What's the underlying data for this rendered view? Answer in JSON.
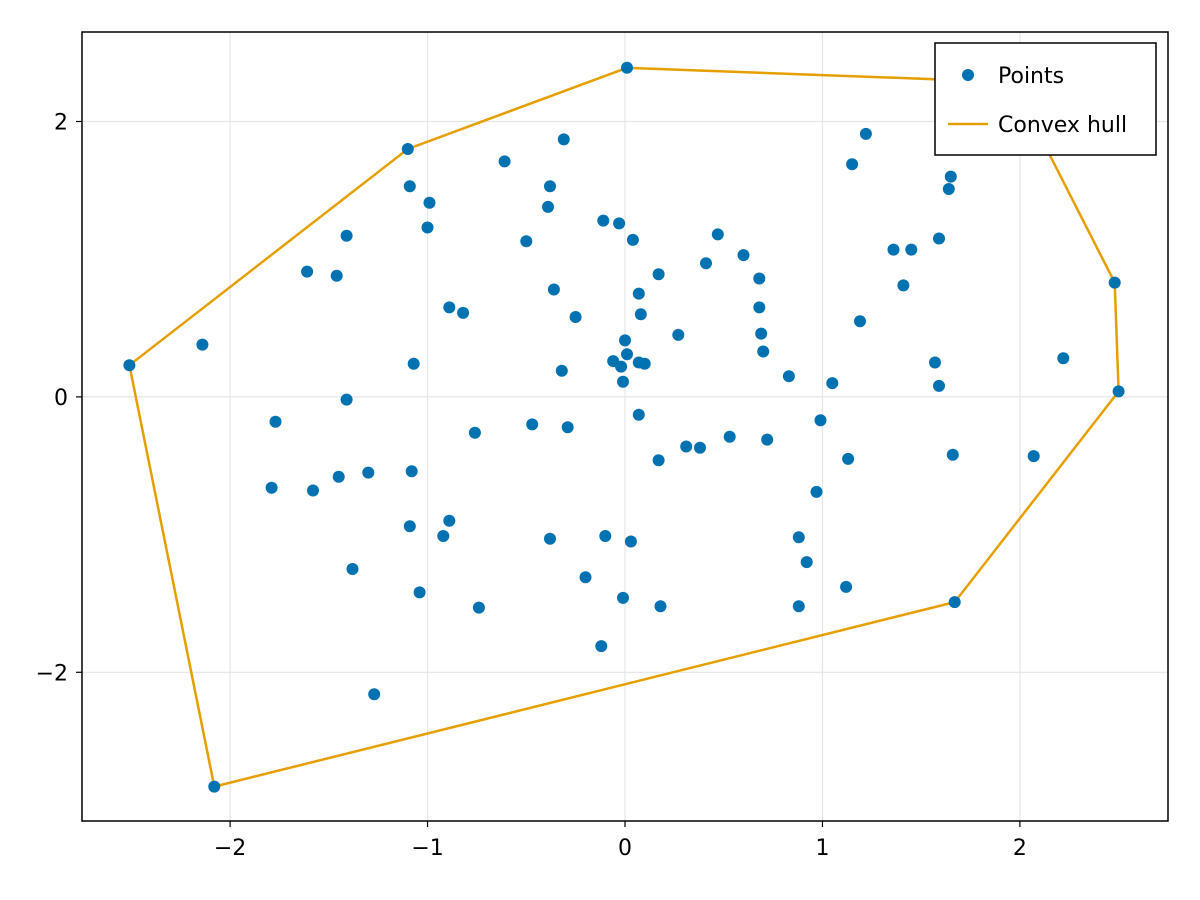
{
  "chart_data": {
    "type": "scatter",
    "title": "",
    "xlabel": "",
    "ylabel": "",
    "xlim": [
      -2.75,
      2.75
    ],
    "ylim": [
      -3.08,
      2.65
    ],
    "xticks": [
      -2,
      -1,
      0,
      1,
      2
    ],
    "yticks": [
      -2,
      0,
      2
    ],
    "xtick_labels": [
      "−2",
      "−1",
      "0",
      "1",
      "2"
    ],
    "ytick_labels": [
      "−2",
      "0",
      "2"
    ],
    "grid": true,
    "legend": {
      "position": "top-right",
      "entries": [
        {
          "label": "Points",
          "kind": "marker",
          "color": "#0072b2"
        },
        {
          "label": "Convex hull",
          "kind": "line",
          "color": "#e69f00"
        }
      ]
    },
    "series": [
      {
        "name": "Points",
        "type": "scatter",
        "color": "#0072b2",
        "points": [
          [
            0.01,
            2.39
          ],
          [
            -0.31,
            1.87
          ],
          [
            1.22,
            1.91
          ],
          [
            -1.1,
            1.8
          ],
          [
            -0.61,
            1.71
          ],
          [
            1.15,
            1.69
          ],
          [
            1.65,
            1.6
          ],
          [
            1.64,
            1.51
          ],
          [
            -1.09,
            1.53
          ],
          [
            -0.38,
            1.53
          ],
          [
            -0.99,
            1.41
          ],
          [
            -0.39,
            1.38
          ],
          [
            -0.11,
            1.28
          ],
          [
            -0.03,
            1.26
          ],
          [
            -1.0,
            1.23
          ],
          [
            0.47,
            1.18
          ],
          [
            -1.41,
            1.17
          ],
          [
            0.04,
            1.14
          ],
          [
            1.59,
            1.15
          ],
          [
            -0.5,
            1.13
          ],
          [
            1.36,
            1.07
          ],
          [
            1.45,
            1.07
          ],
          [
            0.6,
            1.03
          ],
          [
            0.41,
            0.97
          ],
          [
            -1.61,
            0.91
          ],
          [
            -1.46,
            0.88
          ],
          [
            0.17,
            0.89
          ],
          [
            0.68,
            0.86
          ],
          [
            2.48,
            0.83
          ],
          [
            1.41,
            0.81
          ],
          [
            -0.36,
            0.78
          ],
          [
            0.07,
            0.75
          ],
          [
            -0.89,
            0.65
          ],
          [
            0.68,
            0.65
          ],
          [
            -0.82,
            0.61
          ],
          [
            0.08,
            0.6
          ],
          [
            -0.25,
            0.58
          ],
          [
            1.19,
            0.55
          ],
          [
            0.69,
            0.46
          ],
          [
            0.27,
            0.45
          ],
          [
            0.0,
            0.41
          ],
          [
            -2.14,
            0.38
          ],
          [
            0.7,
            0.33
          ],
          [
            0.01,
            0.31
          ],
          [
            2.22,
            0.28
          ],
          [
            -0.06,
            0.26
          ],
          [
            1.57,
            0.25
          ],
          [
            0.07,
            0.25
          ],
          [
            0.1,
            0.24
          ],
          [
            -1.07,
            0.24
          ],
          [
            -2.51,
            0.23
          ],
          [
            -0.02,
            0.22
          ],
          [
            -0.32,
            0.19
          ],
          [
            0.83,
            0.15
          ],
          [
            -0.01,
            0.11
          ],
          [
            1.05,
            0.1
          ],
          [
            1.59,
            0.08
          ],
          [
            2.5,
            0.04
          ],
          [
            -1.41,
            -0.02
          ],
          [
            0.07,
            -0.13
          ],
          [
            0.99,
            -0.17
          ],
          [
            -1.77,
            -0.18
          ],
          [
            -0.47,
            -0.2
          ],
          [
            -0.29,
            -0.22
          ],
          [
            -0.76,
            -0.26
          ],
          [
            0.53,
            -0.29
          ],
          [
            0.72,
            -0.31
          ],
          [
            0.31,
            -0.36
          ],
          [
            0.38,
            -0.37
          ],
          [
            1.66,
            -0.42
          ],
          [
            2.07,
            -0.43
          ],
          [
            1.13,
            -0.45
          ],
          [
            0.17,
            -0.46
          ],
          [
            -1.08,
            -0.54
          ],
          [
            -1.3,
            -0.55
          ],
          [
            -1.45,
            -0.58
          ],
          [
            -1.79,
            -0.66
          ],
          [
            -1.58,
            -0.68
          ],
          [
            0.97,
            -0.69
          ],
          [
            -0.89,
            -0.9
          ],
          [
            -1.09,
            -0.94
          ],
          [
            -0.92,
            -1.01
          ],
          [
            -0.1,
            -1.01
          ],
          [
            0.88,
            -1.02
          ],
          [
            -0.38,
            -1.03
          ],
          [
            0.03,
            -1.05
          ],
          [
            0.92,
            -1.2
          ],
          [
            -1.38,
            -1.25
          ],
          [
            -0.2,
            -1.31
          ],
          [
            1.12,
            -1.38
          ],
          [
            -1.04,
            -1.42
          ],
          [
            -0.01,
            -1.46
          ],
          [
            1.67,
            -1.49
          ],
          [
            0.88,
            -1.52
          ],
          [
            -0.74,
            -1.53
          ],
          [
            0.18,
            -1.52
          ],
          [
            -0.12,
            -1.81
          ],
          [
            -1.27,
            -2.16
          ],
          [
            -2.08,
            -2.83
          ]
        ]
      },
      {
        "name": "Convex hull",
        "type": "line",
        "color": "#e69f00",
        "points": [
          [
            0.01,
            2.39
          ],
          [
            -1.1,
            1.8
          ],
          [
            -2.51,
            0.23
          ],
          [
            -2.08,
            -2.83
          ],
          [
            1.67,
            -1.49
          ],
          [
            2.5,
            0.04
          ],
          [
            2.48,
            0.83
          ],
          [
            2.1,
            1.9
          ],
          [
            1.7,
            2.3
          ],
          [
            0.01,
            2.39
          ]
        ]
      }
    ]
  }
}
